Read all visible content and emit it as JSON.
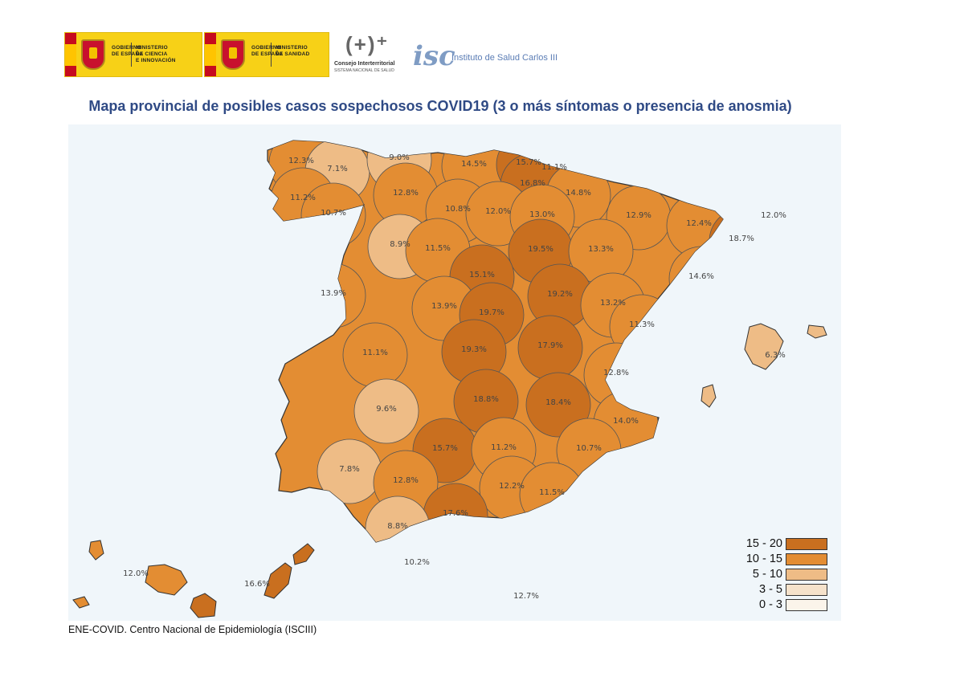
{
  "logos": {
    "gov_ciencia": [
      "GOBIERNO\nDE ESPAÑA",
      "MINISTERIO\nDE CIENCIA\nE INNOVACIÓN"
    ],
    "gov_sanidad": [
      "GOBIERNO\nDE ESPAÑA",
      "MINISTERIO\nDE SANIDAD"
    ],
    "consejo_mark": "(+)⁺",
    "consejo_name": "Consejo Interterritorial",
    "consejo_sub": "SISTEMA NACIONAL DE SALUD",
    "isciii_mark": "isc",
    "isciii_name": "Instituto de Salud Carlos III"
  },
  "title": "Mapa provincial de posibles casos sospechosos COVID19 (3 o más síntomas o presencia de anosmia)",
  "source": "ENE-COVID. Centro Nacional de Epidemiología (ISCIII)",
  "legend": [
    {
      "label": "15 - 20",
      "color": "#c96f1f"
    },
    {
      "label": "10 - 15",
      "color": "#e38d33"
    },
    {
      "label": "5 - 10",
      "color": "#eebc86"
    },
    {
      "label": "3 - 5",
      "color": "#f5e2cb"
    },
    {
      "label": "0 - 3",
      "color": "#fbf4ea"
    }
  ],
  "provinces": [
    {
      "label": "12.3%",
      "cls": "10 - 15"
    },
    {
      "label": "7.1%",
      "cls": "5 - 10"
    },
    {
      "label": "9.0%",
      "cls": "5 - 10"
    },
    {
      "label": "14.5%",
      "cls": "10 - 15"
    },
    {
      "label": "15.7%",
      "cls": "15 - 20"
    },
    {
      "label": "11.1%",
      "cls": "10 - 15"
    },
    {
      "label": "16.8%",
      "cls": "15 - 20"
    },
    {
      "label": "11.2%",
      "cls": "10 - 15"
    },
    {
      "label": "12.8%",
      "cls": "10 - 15"
    },
    {
      "label": "14.8%",
      "cls": "10 - 15"
    },
    {
      "label": "10.8%",
      "cls": "10 - 15"
    },
    {
      "label": "12.0%",
      "cls": "10 - 15"
    },
    {
      "label": "10.7%",
      "cls": "10 - 15"
    },
    {
      "label": "13.0%",
      "cls": "10 - 15"
    },
    {
      "label": "12.9%",
      "cls": "10 - 15"
    },
    {
      "label": "12.4%",
      "cls": "10 - 15"
    },
    {
      "label": "12.0%",
      "cls": "10 - 15"
    },
    {
      "label": "8.9%",
      "cls": "5 - 10"
    },
    {
      "label": "18.7%",
      "cls": "15 - 20"
    },
    {
      "label": "11.5%",
      "cls": "10 - 15"
    },
    {
      "label": "19.5%",
      "cls": "15 - 20"
    },
    {
      "label": "13.3%",
      "cls": "10 - 15"
    },
    {
      "label": "15.1%",
      "cls": "15 - 20"
    },
    {
      "label": "14.6%",
      "cls": "10 - 15"
    },
    {
      "label": "13.9%",
      "cls": "10 - 15"
    },
    {
      "label": "19.2%",
      "cls": "15 - 20"
    },
    {
      "label": "13.9%",
      "cls": "10 - 15"
    },
    {
      "label": "19.7%",
      "cls": "15 - 20"
    },
    {
      "label": "13.2%",
      "cls": "10 - 15"
    },
    {
      "label": "11.3%",
      "cls": "10 - 15"
    },
    {
      "label": "11.1%",
      "cls": "10 - 15"
    },
    {
      "label": "19.3%",
      "cls": "15 - 20"
    },
    {
      "label": "17.9%",
      "cls": "15 - 20"
    },
    {
      "label": "6.3%",
      "cls": "5 - 10"
    },
    {
      "label": "12.8%",
      "cls": "10 - 15"
    },
    {
      "label": "18.8%",
      "cls": "15 - 20"
    },
    {
      "label": "18.4%",
      "cls": "15 - 20"
    },
    {
      "label": "9.6%",
      "cls": "5 - 10"
    },
    {
      "label": "14.0%",
      "cls": "10 - 15"
    },
    {
      "label": "15.7%",
      "cls": "15 - 20"
    },
    {
      "label": "11.2%",
      "cls": "10 - 15"
    },
    {
      "label": "10.7%",
      "cls": "10 - 15"
    },
    {
      "label": "7.8%",
      "cls": "5 - 10"
    },
    {
      "label": "12.8%",
      "cls": "10 - 15"
    },
    {
      "label": "12.2%",
      "cls": "10 - 15"
    },
    {
      "label": "11.5%",
      "cls": "10 - 15"
    },
    {
      "label": "17.6%",
      "cls": "15 - 20"
    },
    {
      "label": "8.8%",
      "cls": "5 - 10"
    },
    {
      "label": "10.2%",
      "cls": "10 - 15"
    },
    {
      "label": "12.0%",
      "cls": "10 - 15"
    },
    {
      "label": "16.6%",
      "cls": "15 - 20"
    },
    {
      "label": "12.7%",
      "cls": "10 - 15"
    }
  ]
}
